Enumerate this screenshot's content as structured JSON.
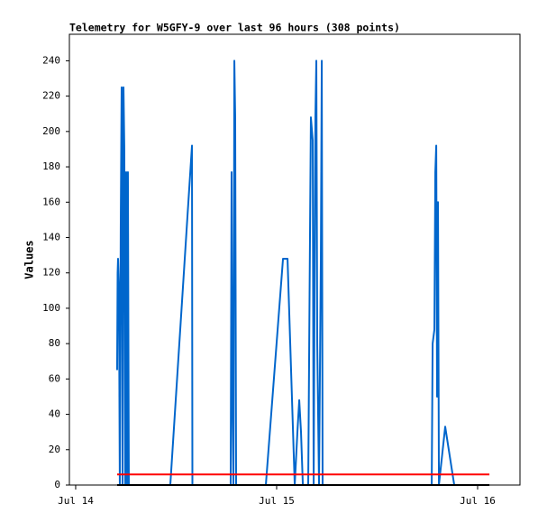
{
  "chart_data": {
    "type": "line",
    "title": "Telemetry for W5GFY-9 over last 96 hours (308 points)",
    "y_label": "Values",
    "xlim": [
      -0.75,
      53.06
    ],
    "xticks": [
      {
        "value": 0,
        "label": "Jul 14"
      },
      {
        "value": 24,
        "label": "Jul 15"
      },
      {
        "value": 48,
        "label": "Jul 16"
      }
    ],
    "ylim": [
      0,
      255
    ],
    "yticks": [
      0,
      20,
      40,
      60,
      80,
      100,
      120,
      140,
      160,
      180,
      200,
      220,
      240
    ],
    "series": [
      {
        "color": "#0066cc",
        "x": [
          4.95,
          5.01,
          5.06,
          5.17,
          5.27,
          5.38,
          5.49,
          5.6,
          5.71,
          5.81,
          5.92,
          6.03,
          6.14,
          6.24,
          6.35,
          11.3,
          13.89,
          13.94,
          18.51,
          18.62,
          18.73,
          18.84,
          18.95,
          19.05,
          19.16,
          22.71,
          24.76,
          25.3,
          26.16,
          26.48,
          26.7,
          26.91,
          27.13,
          27.77,
          27.99,
          28.09,
          28.31,
          28.42,
          28.63,
          28.74,
          28.85,
          29.06,
          29.28,
          29.39,
          29.49,
          42.52,
          42.63,
          42.84,
          42.95,
          43.06,
          43.16,
          43.27,
          43.38,
          44.13,
          45.21
        ],
        "values": [
          65,
          120,
          128,
          110,
          0,
          145,
          225,
          0,
          225,
          190,
          0,
          177,
          0,
          177,
          0,
          0,
          192,
          0,
          0,
          177,
          45,
          0,
          240,
          208,
          0,
          0,
          128,
          128,
          0,
          30,
          48,
          30,
          0,
          0,
          145,
          208,
          195,
          0,
          208,
          240,
          80,
          0,
          128,
          240,
          0,
          0,
          80,
          88,
          177,
          192,
          50,
          160,
          0,
          33,
          0
        ]
      },
      {
        "color": "#ff0000",
        "x": [
          4.95,
          49.41
        ],
        "values": [
          6,
          6
        ]
      },
      {
        "color": "#000000",
        "x": [
          4.95,
          49.41
        ],
        "values": [
          0,
          0
        ]
      }
    ]
  }
}
